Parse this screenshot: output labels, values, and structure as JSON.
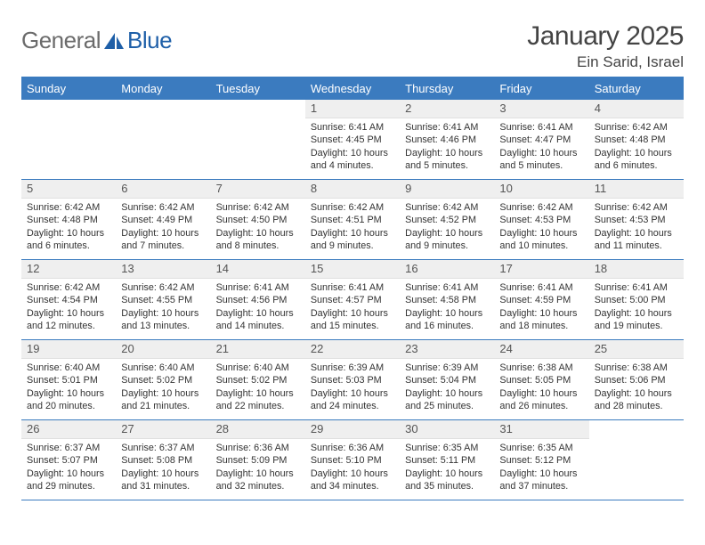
{
  "logo": {
    "word1": "General",
    "word2": "Blue"
  },
  "title": "January 2025",
  "location": "Ein Sarid, Israel",
  "colors": {
    "accent": "#3b7bbf",
    "header_bg": "#3b7bbf",
    "header_text": "#ffffff",
    "daynum_bg": "#efefef",
    "daynum_text": "#555555",
    "body_text": "#333333",
    "logo_blue": "#1e5fa8",
    "logo_gray": "#6b6b6b"
  },
  "dow": [
    "Sunday",
    "Monday",
    "Tuesday",
    "Wednesday",
    "Thursday",
    "Friday",
    "Saturday"
  ],
  "weeks": [
    [
      {
        "day": "",
        "sunrise": "",
        "sunset": "",
        "daylight": ""
      },
      {
        "day": "",
        "sunrise": "",
        "sunset": "",
        "daylight": ""
      },
      {
        "day": "",
        "sunrise": "",
        "sunset": "",
        "daylight": ""
      },
      {
        "day": "1",
        "sunrise": "Sunrise: 6:41 AM",
        "sunset": "Sunset: 4:45 PM",
        "daylight": "Daylight: 10 hours and 4 minutes."
      },
      {
        "day": "2",
        "sunrise": "Sunrise: 6:41 AM",
        "sunset": "Sunset: 4:46 PM",
        "daylight": "Daylight: 10 hours and 5 minutes."
      },
      {
        "day": "3",
        "sunrise": "Sunrise: 6:41 AM",
        "sunset": "Sunset: 4:47 PM",
        "daylight": "Daylight: 10 hours and 5 minutes."
      },
      {
        "day": "4",
        "sunrise": "Sunrise: 6:42 AM",
        "sunset": "Sunset: 4:48 PM",
        "daylight": "Daylight: 10 hours and 6 minutes."
      }
    ],
    [
      {
        "day": "5",
        "sunrise": "Sunrise: 6:42 AM",
        "sunset": "Sunset: 4:48 PM",
        "daylight": "Daylight: 10 hours and 6 minutes."
      },
      {
        "day": "6",
        "sunrise": "Sunrise: 6:42 AM",
        "sunset": "Sunset: 4:49 PM",
        "daylight": "Daylight: 10 hours and 7 minutes."
      },
      {
        "day": "7",
        "sunrise": "Sunrise: 6:42 AM",
        "sunset": "Sunset: 4:50 PM",
        "daylight": "Daylight: 10 hours and 8 minutes."
      },
      {
        "day": "8",
        "sunrise": "Sunrise: 6:42 AM",
        "sunset": "Sunset: 4:51 PM",
        "daylight": "Daylight: 10 hours and 9 minutes."
      },
      {
        "day": "9",
        "sunrise": "Sunrise: 6:42 AM",
        "sunset": "Sunset: 4:52 PM",
        "daylight": "Daylight: 10 hours and 9 minutes."
      },
      {
        "day": "10",
        "sunrise": "Sunrise: 6:42 AM",
        "sunset": "Sunset: 4:53 PM",
        "daylight": "Daylight: 10 hours and 10 minutes."
      },
      {
        "day": "11",
        "sunrise": "Sunrise: 6:42 AM",
        "sunset": "Sunset: 4:53 PM",
        "daylight": "Daylight: 10 hours and 11 minutes."
      }
    ],
    [
      {
        "day": "12",
        "sunrise": "Sunrise: 6:42 AM",
        "sunset": "Sunset: 4:54 PM",
        "daylight": "Daylight: 10 hours and 12 minutes."
      },
      {
        "day": "13",
        "sunrise": "Sunrise: 6:42 AM",
        "sunset": "Sunset: 4:55 PM",
        "daylight": "Daylight: 10 hours and 13 minutes."
      },
      {
        "day": "14",
        "sunrise": "Sunrise: 6:41 AM",
        "sunset": "Sunset: 4:56 PM",
        "daylight": "Daylight: 10 hours and 14 minutes."
      },
      {
        "day": "15",
        "sunrise": "Sunrise: 6:41 AM",
        "sunset": "Sunset: 4:57 PM",
        "daylight": "Daylight: 10 hours and 15 minutes."
      },
      {
        "day": "16",
        "sunrise": "Sunrise: 6:41 AM",
        "sunset": "Sunset: 4:58 PM",
        "daylight": "Daylight: 10 hours and 16 minutes."
      },
      {
        "day": "17",
        "sunrise": "Sunrise: 6:41 AM",
        "sunset": "Sunset: 4:59 PM",
        "daylight": "Daylight: 10 hours and 18 minutes."
      },
      {
        "day": "18",
        "sunrise": "Sunrise: 6:41 AM",
        "sunset": "Sunset: 5:00 PM",
        "daylight": "Daylight: 10 hours and 19 minutes."
      }
    ],
    [
      {
        "day": "19",
        "sunrise": "Sunrise: 6:40 AM",
        "sunset": "Sunset: 5:01 PM",
        "daylight": "Daylight: 10 hours and 20 minutes."
      },
      {
        "day": "20",
        "sunrise": "Sunrise: 6:40 AM",
        "sunset": "Sunset: 5:02 PM",
        "daylight": "Daylight: 10 hours and 21 minutes."
      },
      {
        "day": "21",
        "sunrise": "Sunrise: 6:40 AM",
        "sunset": "Sunset: 5:02 PM",
        "daylight": "Daylight: 10 hours and 22 minutes."
      },
      {
        "day": "22",
        "sunrise": "Sunrise: 6:39 AM",
        "sunset": "Sunset: 5:03 PM",
        "daylight": "Daylight: 10 hours and 24 minutes."
      },
      {
        "day": "23",
        "sunrise": "Sunrise: 6:39 AM",
        "sunset": "Sunset: 5:04 PM",
        "daylight": "Daylight: 10 hours and 25 minutes."
      },
      {
        "day": "24",
        "sunrise": "Sunrise: 6:38 AM",
        "sunset": "Sunset: 5:05 PM",
        "daylight": "Daylight: 10 hours and 26 minutes."
      },
      {
        "day": "25",
        "sunrise": "Sunrise: 6:38 AM",
        "sunset": "Sunset: 5:06 PM",
        "daylight": "Daylight: 10 hours and 28 minutes."
      }
    ],
    [
      {
        "day": "26",
        "sunrise": "Sunrise: 6:37 AM",
        "sunset": "Sunset: 5:07 PM",
        "daylight": "Daylight: 10 hours and 29 minutes."
      },
      {
        "day": "27",
        "sunrise": "Sunrise: 6:37 AM",
        "sunset": "Sunset: 5:08 PM",
        "daylight": "Daylight: 10 hours and 31 minutes."
      },
      {
        "day": "28",
        "sunrise": "Sunrise: 6:36 AM",
        "sunset": "Sunset: 5:09 PM",
        "daylight": "Daylight: 10 hours and 32 minutes."
      },
      {
        "day": "29",
        "sunrise": "Sunrise: 6:36 AM",
        "sunset": "Sunset: 5:10 PM",
        "daylight": "Daylight: 10 hours and 34 minutes."
      },
      {
        "day": "30",
        "sunrise": "Sunrise: 6:35 AM",
        "sunset": "Sunset: 5:11 PM",
        "daylight": "Daylight: 10 hours and 35 minutes."
      },
      {
        "day": "31",
        "sunrise": "Sunrise: 6:35 AM",
        "sunset": "Sunset: 5:12 PM",
        "daylight": "Daylight: 10 hours and 37 minutes."
      },
      {
        "day": "",
        "sunrise": "",
        "sunset": "",
        "daylight": ""
      }
    ]
  ]
}
